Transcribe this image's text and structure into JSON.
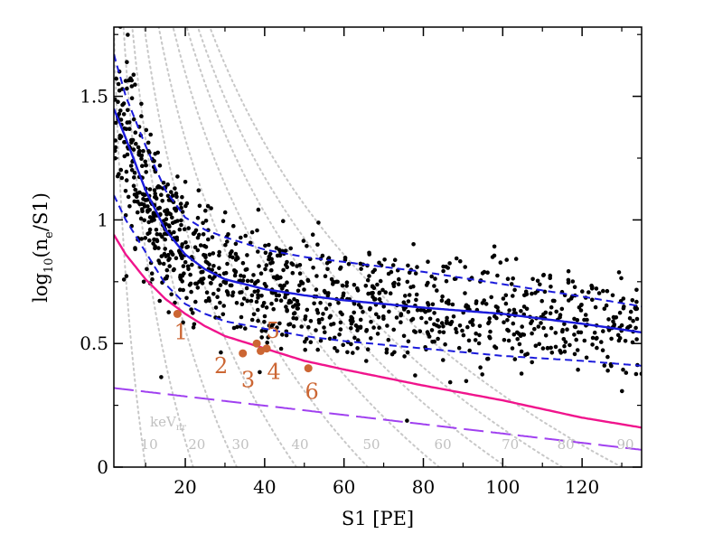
{
  "chart_data": {
    "type": "scatter",
    "xlabel": "S1 [PE]",
    "ylabel_parts": {
      "main": "log",
      "sub1": "10",
      "mid": "(n",
      "sub2": "e",
      "end": "/S1)"
    },
    "xlim": [
      2,
      135
    ],
    "ylim": [
      0,
      1.78
    ],
    "x_ticks": [
      20,
      40,
      60,
      80,
      100,
      120
    ],
    "y_ticks": [
      0,
      0.5,
      1,
      1.5
    ],
    "y_tick_labels": [
      "0",
      "0.5",
      "1",
      "1.5"
    ],
    "grid": false,
    "colors": {
      "scatter": "#000000",
      "median": "#1a1adb",
      "band": "#1a1adb",
      "threshold": "#f0148c",
      "lower_dashed": "#a040f0",
      "energy_contours": "#c8c8c8",
      "events": "#cc6633",
      "energy_labels": "#c0c0c0"
    },
    "median_line": {
      "x": [
        2,
        5,
        10,
        15,
        20,
        25,
        30,
        40,
        50,
        60,
        80,
        100,
        120,
        135
      ],
      "y": [
        1.45,
        1.33,
        1.12,
        0.96,
        0.86,
        0.8,
        0.76,
        0.72,
        0.695,
        0.675,
        0.645,
        0.62,
        0.58,
        0.545
      ]
    },
    "band_upper": {
      "x": [
        2,
        5,
        10,
        15,
        20,
        25,
        30,
        40,
        50,
        60,
        80,
        100,
        120,
        135
      ],
      "y": [
        1.67,
        1.5,
        1.3,
        1.12,
        1.01,
        0.96,
        0.93,
        0.88,
        0.85,
        0.83,
        0.79,
        0.74,
        0.69,
        0.65
      ]
    },
    "band_lower": {
      "x": [
        2,
        5,
        10,
        15,
        20,
        25,
        30,
        40,
        50,
        60,
        80,
        100,
        120,
        135
      ],
      "y": [
        1.1,
        1.0,
        0.87,
        0.74,
        0.66,
        0.62,
        0.59,
        0.56,
        0.53,
        0.51,
        0.48,
        0.45,
        0.43,
        0.41
      ]
    },
    "threshold_line": {
      "x": [
        2,
        5,
        10,
        15,
        20,
        25,
        30,
        40,
        50,
        60,
        80,
        100,
        120,
        135
      ],
      "y": [
        0.94,
        0.86,
        0.76,
        0.68,
        0.62,
        0.57,
        0.53,
        0.48,
        0.43,
        0.395,
        0.33,
        0.27,
        0.2,
        0.16
      ]
    },
    "lower_dashed_line": {
      "x": [
        2,
        135
      ],
      "y": [
        0.32,
        0.07
      ]
    },
    "energy_label_header": "keV",
    "energy_label_sub": "nr",
    "energy_contours": [
      {
        "label": "10",
        "x_bottom": 10
      },
      {
        "label": "20",
        "x_bottom": 22
      },
      {
        "label": "30",
        "x_bottom": 33
      },
      {
        "label": "40",
        "x_bottom": 48
      },
      {
        "label": "50",
        "x_bottom": 66
      },
      {
        "label": "60",
        "x_bottom": 84
      },
      {
        "label": "70",
        "x_bottom": 101
      },
      {
        "label": "80",
        "x_bottom": 115
      },
      {
        "label": "90",
        "x_bottom": 130
      }
    ],
    "events": [
      {
        "label": "1",
        "x": 18,
        "y": 0.62
      },
      {
        "label": "2",
        "x": 34.5,
        "y": 0.46
      },
      {
        "label": "3",
        "x": 39,
        "y": 0.47
      },
      {
        "label": "4",
        "x": 40.5,
        "y": 0.48
      },
      {
        "label": "5",
        "x": 38,
        "y": 0.5
      },
      {
        "label": "6",
        "x": 51,
        "y": 0.4
      }
    ],
    "scatter_point_count": 1150
  }
}
